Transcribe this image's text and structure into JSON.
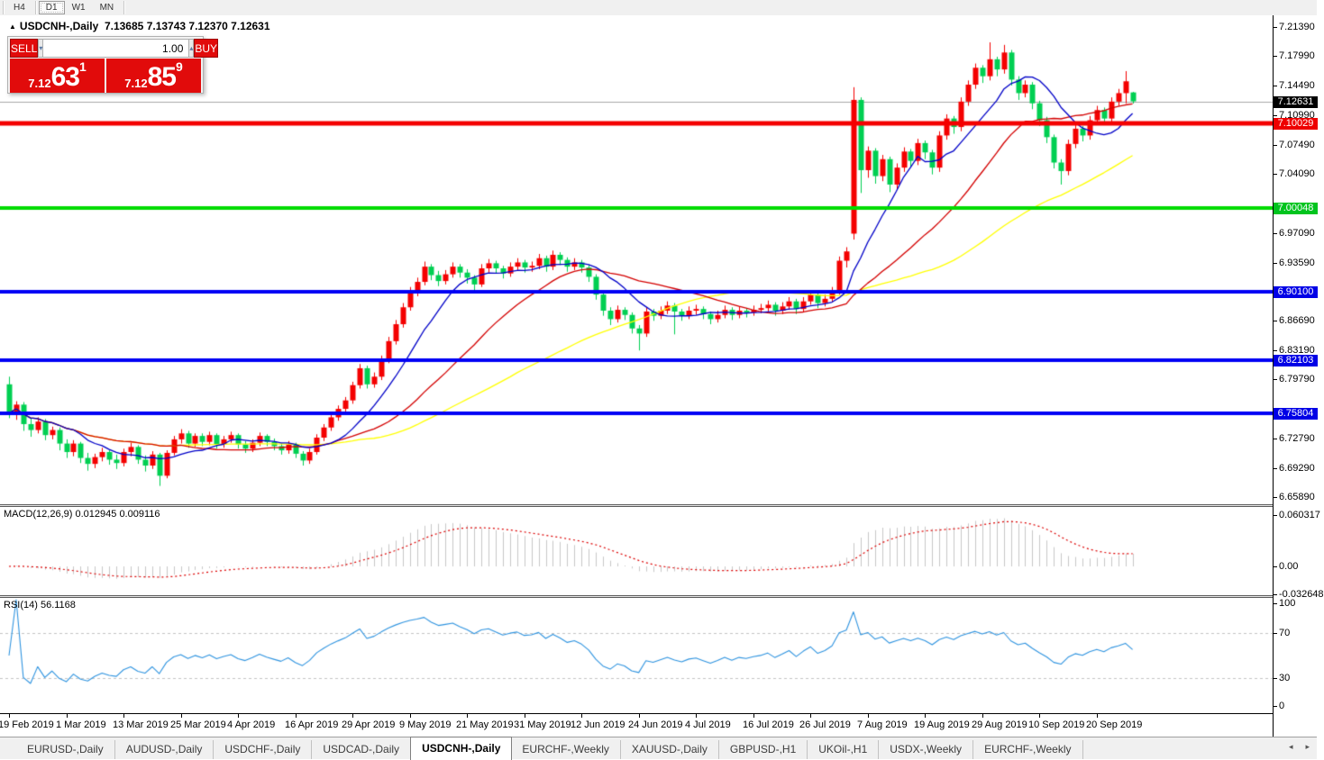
{
  "toolbar": {
    "timeframes": [
      {
        "label": "H4",
        "active": false
      },
      {
        "label": "D1",
        "active": true
      },
      {
        "label": "W1",
        "active": false
      },
      {
        "label": "MN",
        "active": false
      }
    ]
  },
  "title": {
    "collapse_icon": "▲",
    "symbol": "USDCNH-,Daily",
    "open": "7.13685",
    "high": "7.13743",
    "low": "7.12370",
    "close": "7.12631"
  },
  "trade_panel": {
    "sell_label": "SELL",
    "buy_label": "BUY",
    "volume": "1.00",
    "spinner_down": "▾",
    "spinner_up": "▴",
    "sell_price": {
      "prefix": "7.12",
      "pips": "63",
      "pipette": "1"
    },
    "buy_price": {
      "prefix": "7.12",
      "pips": "85",
      "pipette": "9"
    }
  },
  "indicators": {
    "macd": {
      "label": "MACD(12,26,9)",
      "value1": "0.012945",
      "value2": "0.009116"
    },
    "rsi": {
      "label": "RSI(14)",
      "value": "56.1168"
    }
  },
  "price_axis": {
    "labels": [
      {
        "text": "7.21390",
        "value": 7.2139
      },
      {
        "text": "7.17990",
        "value": 7.1799
      },
      {
        "text": "7.14490",
        "value": 7.1449
      },
      {
        "text": "7.10990",
        "value": 7.1099
      },
      {
        "text": "7.07490",
        "value": 7.0749
      },
      {
        "text": "7.04090",
        "value": 7.0409
      },
      {
        "text": "6.97090",
        "value": 6.9709
      },
      {
        "text": "6.93590",
        "value": 6.9359
      },
      {
        "text": "6.86690",
        "value": 6.8669
      },
      {
        "text": "6.83190",
        "value": 6.8319
      },
      {
        "text": "6.79790",
        "value": 6.7979
      },
      {
        "text": "6.72790",
        "value": 6.7279
      },
      {
        "text": "6.69290",
        "value": 6.6929
      },
      {
        "text": "6.65890",
        "value": 6.6589
      }
    ],
    "badges": [
      {
        "text": "7.12631",
        "value": 7.12631,
        "color": "#000000"
      },
      {
        "text": "7.10029",
        "value": 7.10029,
        "color": "#ee0000"
      },
      {
        "text": "7.00048",
        "value": 7.00048,
        "color": "#00c41e"
      },
      {
        "text": "6.90100",
        "value": 6.901,
        "color": "#0000e6"
      },
      {
        "text": "6.82103",
        "value": 6.82103,
        "color": "#0000e6"
      },
      {
        "text": "6.75804",
        "value": 6.75804,
        "color": "#0000e6"
      }
    ],
    "macd_labels": [
      {
        "text": "0.060317",
        "value": 0.060317
      },
      {
        "text": "0.00",
        "value": 0.0
      },
      {
        "text": "-0.032648",
        "value": -0.032648
      }
    ],
    "rsi_labels": [
      {
        "text": "100",
        "value": 100
      },
      {
        "text": "70",
        "value": 70
      },
      {
        "text": "30",
        "value": 30
      },
      {
        "text": "0",
        "value": 0
      }
    ]
  },
  "time_axis": {
    "dates": [
      "19 Feb 2019",
      "1 Mar 2019",
      "13 Mar 2019",
      "25 Mar 2019",
      "4 Apr 2019",
      "16 Apr 2019",
      "29 Apr 2019",
      "9 May 2019",
      "21 May 2019",
      "31 May 2019",
      "12 Jun 2019",
      "24 Jun 2019",
      "4 Jul 2019",
      "16 Jul 2019",
      "26 Jul 2019",
      "7 Aug 2019",
      "19 Aug 2019",
      "29 Aug 2019",
      "10 Sep 2019",
      "20 Sep 2019"
    ]
  },
  "tabs": {
    "items": [
      {
        "label": "EURUSD-,Daily",
        "active": false
      },
      {
        "label": "AUDUSD-,Daily",
        "active": false
      },
      {
        "label": "USDCHF-,Daily",
        "active": false
      },
      {
        "label": "USDCAD-,Daily",
        "active": false
      },
      {
        "label": "USDCNH-,Daily",
        "active": true
      },
      {
        "label": "EURCHF-,Weekly",
        "active": false
      },
      {
        "label": "XAUUSD-,Daily",
        "active": false
      },
      {
        "label": "GBPUSD-,H1",
        "active": false
      },
      {
        "label": "UKOil-,H1",
        "active": false
      },
      {
        "label": "USDX-,Weekly",
        "active": false
      },
      {
        "label": "EURCHF-,Weekly",
        "active": false
      }
    ],
    "scroll_left": "◂",
    "scroll_right": "▸"
  },
  "colors": {
    "bull": "#f40000",
    "bear": "#00cf52",
    "ma_fast": "#0000c8",
    "ma_mid": "#d40000",
    "ma_slow": "#ffff00",
    "hline_red": "#f40000",
    "hline_green": "#00dc00",
    "hline_blue": "#0000f5",
    "current_line": "#a8a8a8",
    "macd_hist": "#c8c8c8",
    "macd_signal": "#dd0000",
    "rsi_line": "#2f94e0",
    "trade_red": "#e10b0b"
  },
  "chart_data": {
    "type": "candlestick",
    "symbol": "USDCNH-,Daily",
    "ohlc_current": {
      "open": 7.13685,
      "high": 7.13743,
      "low": 7.1237,
      "close": 7.12631
    },
    "hlines": [
      {
        "value": 7.10029,
        "color": "#f40000",
        "width": 5
      },
      {
        "value": 7.00048,
        "color": "#00dc00",
        "width": 4
      },
      {
        "value": 6.901,
        "color": "#0000f5",
        "width": 4
      },
      {
        "value": 6.82103,
        "color": "#0000f5",
        "width": 4
      },
      {
        "value": 6.75804,
        "color": "#0000f5",
        "width": 4
      }
    ],
    "current_price_line": 7.12631,
    "moving_averages": [
      {
        "period": 10,
        "color": "#0000c8"
      },
      {
        "period": 25,
        "color": "#d40000"
      },
      {
        "period": 50,
        "color": "#ffff00"
      }
    ],
    "macd": {
      "fast": 12,
      "slow": 26,
      "signal": 9,
      "last": 0.012945,
      "last_signal": 0.009116,
      "axis_max": 0.060317,
      "axis_min": -0.032648
    },
    "rsi": {
      "period": 14,
      "last": 56.1168,
      "levels": [
        70,
        30
      ]
    },
    "candles": [
      [
        6.792,
        6.801,
        6.752,
        6.758
      ],
      [
        6.758,
        6.772,
        6.75,
        6.768
      ],
      [
        6.768,
        6.771,
        6.737,
        6.745
      ],
      [
        6.745,
        6.752,
        6.73,
        6.738
      ],
      [
        6.738,
        6.753,
        6.734,
        6.748
      ],
      [
        6.748,
        6.751,
        6.726,
        6.732
      ],
      [
        6.732,
        6.742,
        6.727,
        6.738
      ],
      [
        6.738,
        6.741,
        6.714,
        6.722
      ],
      [
        6.722,
        6.727,
        6.705,
        6.712
      ],
      [
        6.712,
        6.726,
        6.707,
        6.722
      ],
      [
        6.722,
        6.724,
        6.699,
        6.705
      ],
      [
        6.705,
        6.711,
        6.69,
        6.698
      ],
      [
        6.698,
        6.71,
        6.693,
        6.706
      ],
      [
        6.706,
        6.717,
        6.701,
        6.712
      ],
      [
        6.712,
        6.714,
        6.697,
        6.703
      ],
      [
        6.703,
        6.709,
        6.692,
        6.699
      ],
      [
        6.699,
        6.716,
        6.695,
        6.712
      ],
      [
        6.712,
        6.723,
        6.707,
        6.718
      ],
      [
        6.718,
        6.72,
        6.698,
        6.703
      ],
      [
        6.703,
        6.708,
        6.689,
        6.696
      ],
      [
        6.696,
        6.713,
        6.692,
        6.709
      ],
      [
        6.709,
        6.711,
        6.672,
        6.684
      ],
      [
        6.684,
        6.714,
        6.681,
        6.711
      ],
      [
        6.711,
        6.731,
        6.708,
        6.727
      ],
      [
        6.727,
        6.739,
        6.722,
        6.734
      ],
      [
        6.734,
        6.737,
        6.717,
        6.722
      ],
      [
        6.722,
        6.734,
        6.718,
        6.731
      ],
      [
        6.731,
        6.734,
        6.719,
        6.724
      ],
      [
        6.724,
        6.736,
        6.72,
        6.732
      ],
      [
        6.732,
        6.734,
        6.716,
        6.721
      ],
      [
        6.721,
        6.731,
        6.717,
        6.727
      ],
      [
        6.727,
        6.736,
        6.723,
        6.732
      ],
      [
        6.732,
        6.734,
        6.716,
        6.721
      ],
      [
        6.721,
        6.725,
        6.711,
        6.716
      ],
      [
        6.716,
        6.727,
        6.712,
        6.723
      ],
      [
        6.723,
        6.735,
        6.719,
        6.731
      ],
      [
        6.731,
        6.733,
        6.719,
        6.724
      ],
      [
        6.724,
        6.728,
        6.714,
        6.719
      ],
      [
        6.719,
        6.722,
        6.709,
        6.714
      ],
      [
        6.714,
        6.725,
        6.71,
        6.721
      ],
      [
        6.721,
        6.723,
        6.705,
        6.71
      ],
      [
        6.71,
        6.713,
        6.696,
        6.702
      ],
      [
        6.702,
        6.716,
        6.698,
        6.712
      ],
      [
        6.712,
        6.733,
        6.709,
        6.729
      ],
      [
        6.729,
        6.745,
        6.725,
        6.741
      ],
      [
        6.741,
        6.757,
        6.737,
        6.753
      ],
      [
        6.753,
        6.767,
        6.749,
        6.763
      ],
      [
        6.763,
        6.777,
        6.759,
        6.773
      ],
      [
        6.773,
        6.795,
        6.769,
        6.791
      ],
      [
        6.791,
        6.816,
        6.787,
        6.811
      ],
      [
        6.811,
        6.814,
        6.787,
        6.792
      ],
      [
        6.792,
        6.806,
        6.788,
        6.801
      ],
      [
        6.801,
        6.826,
        6.797,
        6.821
      ],
      [
        6.821,
        6.848,
        6.817,
        6.843
      ],
      [
        6.843,
        6.868,
        6.839,
        6.863
      ],
      [
        6.863,
        6.888,
        6.859,
        6.883
      ],
      [
        6.883,
        6.907,
        6.879,
        6.901
      ],
      [
        6.901,
        6.918,
        6.896,
        6.913
      ],
      [
        6.913,
        6.937,
        6.909,
        6.931
      ],
      [
        6.931,
        6.934,
        6.915,
        6.921
      ],
      [
        6.921,
        6.926,
        6.908,
        6.914
      ],
      [
        6.914,
        6.927,
        6.91,
        6.922
      ],
      [
        6.922,
        6.936,
        6.918,
        6.931
      ],
      [
        6.931,
        6.934,
        6.918,
        6.924
      ],
      [
        6.924,
        6.928,
        6.911,
        6.918
      ],
      [
        6.918,
        6.921,
        6.903,
        6.91
      ],
      [
        6.91,
        6.934,
        6.907,
        6.929
      ],
      [
        6.929,
        6.94,
        6.924,
        6.935
      ],
      [
        6.935,
        6.938,
        6.923,
        6.929
      ],
      [
        6.929,
        6.932,
        6.917,
        6.923
      ],
      [
        6.923,
        6.936,
        6.919,
        6.931
      ],
      [
        6.931,
        6.941,
        6.927,
        6.936
      ],
      [
        6.936,
        6.939,
        6.924,
        6.93
      ],
      [
        6.93,
        6.937,
        6.925,
        6.932
      ],
      [
        6.932,
        6.946,
        6.928,
        6.941
      ],
      [
        6.941,
        6.944,
        6.925,
        6.931
      ],
      [
        6.931,
        6.95,
        6.927,
        6.945
      ],
      [
        6.945,
        6.948,
        6.933,
        6.939
      ],
      [
        6.939,
        6.942,
        6.925,
        6.931
      ],
      [
        6.931,
        6.941,
        6.927,
        6.936
      ],
      [
        6.936,
        6.939,
        6.924,
        6.93
      ],
      [
        6.93,
        6.933,
        6.913,
        6.919
      ],
      [
        6.919,
        6.922,
        6.892,
        6.898
      ],
      [
        6.898,
        6.901,
        6.873,
        6.879
      ],
      [
        6.879,
        6.883,
        6.862,
        6.869
      ],
      [
        6.869,
        6.885,
        6.865,
        6.88
      ],
      [
        6.88,
        6.883,
        6.868,
        6.874
      ],
      [
        6.874,
        6.877,
        6.852,
        6.858
      ],
      [
        6.858,
        6.862,
        6.832,
        6.852
      ],
      [
        6.852,
        6.883,
        6.848,
        6.878
      ],
      [
        6.878,
        6.881,
        6.867,
        6.873
      ],
      [
        6.873,
        6.884,
        6.869,
        6.879
      ],
      [
        6.879,
        6.89,
        6.875,
        6.885
      ],
      [
        6.885,
        6.888,
        6.851,
        6.878
      ],
      [
        6.878,
        6.881,
        6.867,
        6.873
      ],
      [
        6.873,
        6.884,
        6.869,
        6.879
      ],
      [
        6.879,
        6.886,
        6.874,
        6.881
      ],
      [
        6.881,
        6.884,
        6.869,
        6.875
      ],
      [
        6.875,
        6.878,
        6.863,
        6.869
      ],
      [
        6.869,
        6.879,
        6.865,
        6.874
      ],
      [
        6.874,
        6.885,
        6.87,
        6.88
      ],
      [
        6.88,
        6.883,
        6.868,
        6.874
      ],
      [
        6.874,
        6.884,
        6.87,
        6.879
      ],
      [
        6.879,
        6.882,
        6.871,
        6.877
      ],
      [
        6.877,
        6.885,
        6.873,
        6.88
      ],
      [
        6.88,
        6.887,
        6.876,
        6.882
      ],
      [
        6.882,
        6.891,
        6.878,
        6.886
      ],
      [
        6.886,
        6.889,
        6.873,
        6.879
      ],
      [
        6.879,
        6.889,
        6.875,
        6.884
      ],
      [
        6.884,
        6.895,
        6.88,
        6.89
      ],
      [
        6.89,
        6.893,
        6.875,
        6.881
      ],
      [
        6.881,
        6.895,
        6.877,
        6.89
      ],
      [
        6.89,
        6.903,
        6.886,
        6.898
      ],
      [
        6.898,
        6.901,
        6.882,
        6.888
      ],
      [
        6.888,
        6.898,
        6.884,
        6.893
      ],
      [
        6.893,
        6.907,
        6.889,
        6.902
      ],
      [
        6.902,
        6.943,
        6.898,
        6.938
      ],
      [
        6.938,
        6.954,
        6.93,
        6.949
      ],
      [
        6.97,
        7.143,
        6.963,
        7.128
      ],
      [
        7.128,
        7.131,
        7.018,
        7.045
      ],
      [
        7.045,
        7.073,
        7.036,
        7.068
      ],
      [
        7.068,
        7.071,
        7.029,
        7.038
      ],
      [
        7.038,
        7.063,
        7.032,
        7.058
      ],
      [
        7.058,
        7.061,
        7.019,
        7.028
      ],
      [
        7.028,
        7.053,
        7.022,
        7.048
      ],
      [
        7.048,
        7.072,
        7.043,
        7.067
      ],
      [
        7.067,
        7.07,
        7.048,
        7.056
      ],
      [
        7.056,
        7.082,
        7.051,
        7.077
      ],
      [
        7.077,
        7.08,
        7.058,
        7.066
      ],
      [
        7.066,
        7.069,
        7.04,
        7.048
      ],
      [
        7.048,
        7.091,
        7.043,
        7.086
      ],
      [
        7.086,
        7.111,
        7.081,
        7.106
      ],
      [
        7.106,
        7.109,
        7.088,
        7.096
      ],
      [
        7.096,
        7.131,
        7.091,
        7.126
      ],
      [
        7.126,
        7.151,
        7.121,
        7.146
      ],
      [
        7.146,
        7.171,
        7.141,
        7.166
      ],
      [
        7.166,
        7.169,
        7.148,
        7.156
      ],
      [
        7.156,
        7.196,
        7.151,
        7.176
      ],
      [
        7.176,
        7.179,
        7.156,
        7.164
      ],
      [
        7.164,
        7.193,
        7.159,
        7.184
      ],
      [
        7.184,
        7.187,
        7.145,
        7.152
      ],
      [
        7.152,
        7.156,
        7.128,
        7.136
      ],
      [
        7.136,
        7.151,
        7.131,
        7.146
      ],
      [
        7.146,
        7.149,
        7.117,
        7.124
      ],
      [
        7.124,
        7.127,
        7.097,
        7.104
      ],
      [
        7.104,
        7.108,
        7.077,
        7.084
      ],
      [
        7.084,
        7.087,
        7.047,
        7.054
      ],
      [
        7.054,
        7.058,
        7.028,
        7.044
      ],
      [
        7.044,
        7.081,
        7.039,
        7.076
      ],
      [
        7.076,
        7.099,
        7.071,
        7.094
      ],
      [
        7.094,
        7.097,
        7.079,
        7.086
      ],
      [
        7.086,
        7.109,
        7.081,
        7.104
      ],
      [
        7.104,
        7.121,
        7.099,
        7.116
      ],
      [
        7.116,
        7.119,
        7.099,
        7.106
      ],
      [
        7.106,
        7.131,
        7.101,
        7.126
      ],
      [
        7.126,
        7.141,
        7.121,
        7.136
      ],
      [
        7.136,
        7.162,
        7.124,
        7.15
      ],
      [
        7.13685,
        7.13743,
        7.1237,
        7.12631
      ]
    ]
  }
}
